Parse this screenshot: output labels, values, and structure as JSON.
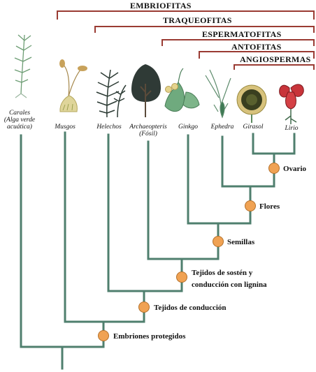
{
  "groups": [
    {
      "key": "embriofitas",
      "label": "EMBRIOFITAS"
    },
    {
      "key": "traqueofitas",
      "label": "TRAQUEOFITAS"
    },
    {
      "key": "espermatofitas",
      "label": "ESPERMATOFITAS"
    },
    {
      "key": "antofitas",
      "label": "ANTOFITAS"
    },
    {
      "key": "angiospermas",
      "label": "ANGIOSPERMAS"
    }
  ],
  "taxa": [
    {
      "key": "carales",
      "name": "Carales",
      "note": "(Alga verde acuática)",
      "icon": "horsetail-alga-icon"
    },
    {
      "key": "musgos",
      "name": "Musgos",
      "icon": "moss-icon"
    },
    {
      "key": "helechos",
      "name": "Helechos",
      "icon": "fern-icon"
    },
    {
      "key": "archaeopteris",
      "name": "Archaeopteris",
      "note": "(Fósil)",
      "icon": "tree-icon"
    },
    {
      "key": "ginkgo",
      "name": "Ginkgo",
      "icon": "ginkgo-leaf-icon"
    },
    {
      "key": "ephedra",
      "name": "Ephedra",
      "icon": "ephedra-icon"
    },
    {
      "key": "girasol",
      "name": "Girasol",
      "icon": "sunflower-icon"
    },
    {
      "key": "lirio",
      "name": "Lirio",
      "icon": "lily-icon"
    }
  ],
  "traits": [
    {
      "key": "embriones",
      "label": "Embriones protegidos"
    },
    {
      "key": "tejidos_conduccion",
      "label": "Tejidos de conducción"
    },
    {
      "key": "tejidos_sosten",
      "label_line1": "Tejidos de sostén y",
      "label_line2": "conducción con lignina"
    },
    {
      "key": "semillas",
      "label": "Semillas"
    },
    {
      "key": "flores",
      "label": "Flores"
    },
    {
      "key": "ovario",
      "label": "Ovario"
    }
  ],
  "colors": {
    "bracket": "#9a3b33",
    "branch": "#4f7f6e",
    "node": "#f0a253"
  }
}
